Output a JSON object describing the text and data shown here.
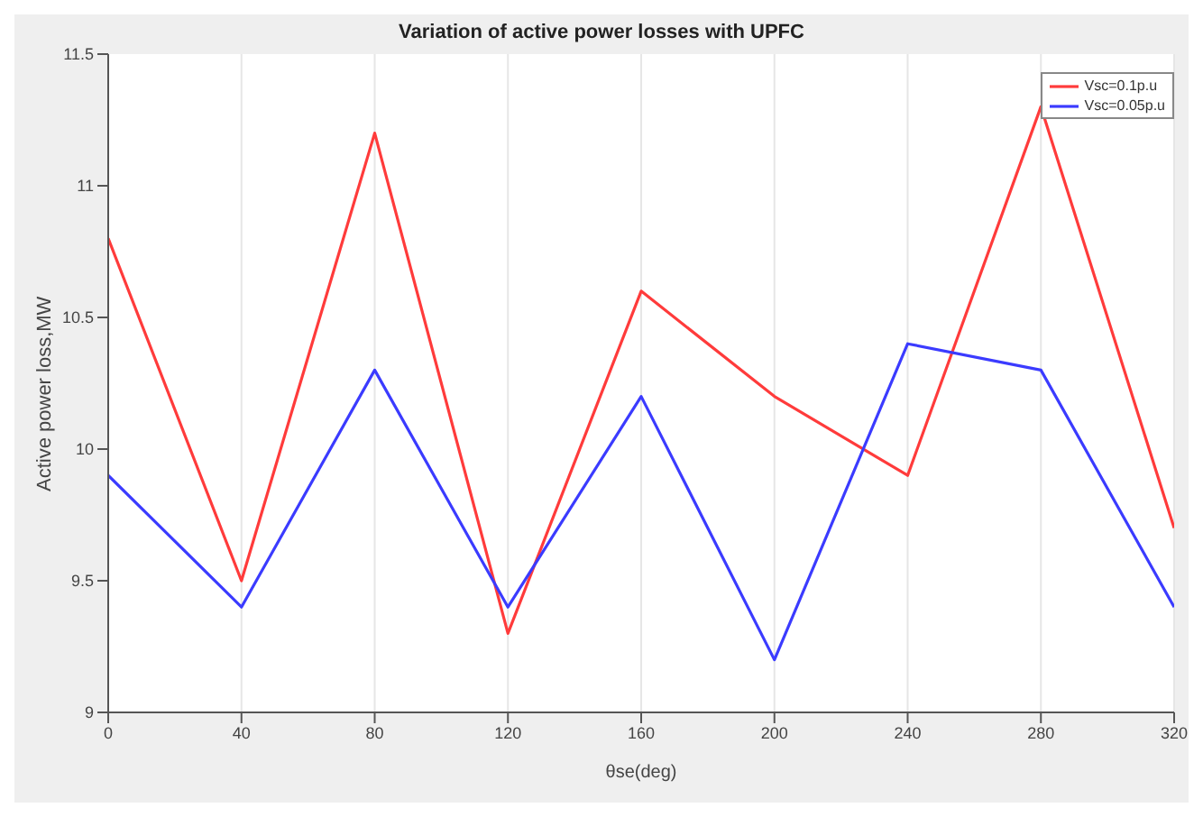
{
  "chart_data": {
    "type": "line",
    "title": "Variation of active power losses with UPFC",
    "xlabel": "θse(deg)",
    "ylabel": "Active power loss,MW",
    "x": [
      0,
      40,
      80,
      120,
      160,
      200,
      240,
      280,
      320
    ],
    "series": [
      {
        "name": "Vsc=0.1p.u",
        "color": "#ff3b3b",
        "values": [
          10.8,
          9.5,
          11.2,
          9.3,
          10.6,
          10.2,
          9.9,
          11.3,
          9.7
        ]
      },
      {
        "name": "Vsc=0.05p.u",
        "color": "#3b3bff",
        "values": [
          9.9,
          9.4,
          10.3,
          9.4,
          10.2,
          9.2,
          10.4,
          10.3,
          9.4
        ]
      }
    ],
    "xlim": [
      0,
      320
    ],
    "xticks": [
      0,
      40,
      80,
      120,
      160,
      200,
      240,
      280,
      320
    ],
    "ylim": [
      9,
      11.5
    ],
    "yticks": [
      9,
      9.5,
      10,
      10.5,
      11,
      11.5
    ],
    "grid": "x",
    "legend": "top right",
    "marker": "none",
    "line_style": "solid"
  }
}
